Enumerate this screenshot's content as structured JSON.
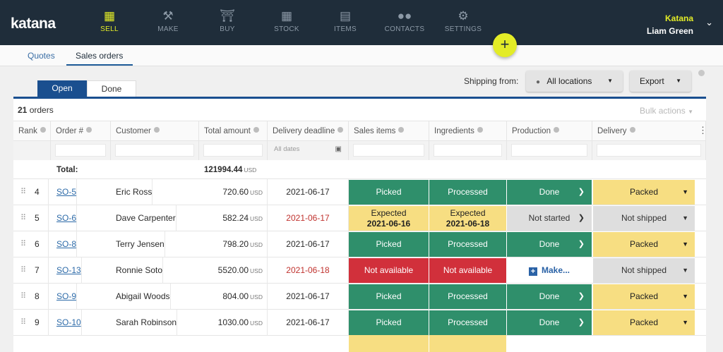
{
  "brand": {
    "logo": "katana",
    "accent": "#e3ec27",
    "nav_bg": "#1f2d3a"
  },
  "nav": [
    {
      "label": "SELL",
      "icon": "storefront-icon",
      "glyph": "▦",
      "active": true
    },
    {
      "label": "MAKE",
      "icon": "hammer-wrench-icon",
      "glyph": "⚒"
    },
    {
      "label": "BUY",
      "icon": "basket-icon",
      "glyph": "⛉"
    },
    {
      "label": "STOCK",
      "icon": "boxes-icon",
      "glyph": "▦"
    },
    {
      "label": "ITEMS",
      "icon": "tag-icon",
      "glyph": "▤"
    },
    {
      "label": "CONTACTS",
      "icon": "people-icon",
      "glyph": "👥"
    },
    {
      "label": "SETTINGS",
      "icon": "gear-icon",
      "glyph": "⚙"
    }
  ],
  "user": {
    "app": "Katana",
    "name": "Liam Green"
  },
  "subtabs": [
    "Quotes",
    "Sales orders"
  ],
  "status_tabs": [
    "Open",
    "Done"
  ],
  "shipping": {
    "label": "Shipping from:",
    "location": "All locations",
    "export": "Export"
  },
  "summary": {
    "count": "21",
    "count_suffix": " orders",
    "bulk_actions": "Bulk actions"
  },
  "columns": [
    "Rank",
    "Order #",
    "Customer",
    "Total amount",
    "Delivery deadline",
    "Sales items",
    "Ingredients",
    "Production",
    "Delivery"
  ],
  "filters": {
    "date_placeholder": "All dates"
  },
  "totals": {
    "label": "Total:",
    "amount": "121994.44",
    "unit": "USD"
  },
  "rows": [
    {
      "rank": "4",
      "order": "SO-5",
      "customer": "Eric Ross",
      "amount": "720.60",
      "unit": "USD",
      "deadline": "2021-06-17",
      "late": false,
      "sales": "Picked",
      "ingredients": "Processed",
      "production": "Done",
      "delivery": "Packed"
    },
    {
      "rank": "5",
      "order": "SO-6",
      "customer": "Dave Carpenter",
      "amount": "582.24",
      "unit": "USD",
      "deadline": "2021-06-17",
      "late": true,
      "sales": "Expected",
      "sales_date": "2021-06-16",
      "ingredients": "Expected",
      "ingredients_date": "2021-06-18",
      "production": "Not started",
      "delivery": "Not shipped"
    },
    {
      "rank": "6",
      "order": "SO-8",
      "customer": "Terry Jensen",
      "amount": "798.20",
      "unit": "USD",
      "deadline": "2021-06-17",
      "late": false,
      "sales": "Picked",
      "ingredients": "Processed",
      "production": "Done",
      "delivery": "Packed"
    },
    {
      "rank": "7",
      "order": "SO-13",
      "customer": "Ronnie Soto",
      "amount": "5520.00",
      "unit": "USD",
      "deadline": "2021-06-18",
      "late": true,
      "sales": "Not available",
      "ingredients": "Not available",
      "production": "Make...",
      "delivery": "Not shipped"
    },
    {
      "rank": "8",
      "order": "SO-9",
      "customer": "Abigail Woods",
      "amount": "804.00",
      "unit": "USD",
      "deadline": "2021-06-17",
      "late": false,
      "sales": "Picked",
      "ingredients": "Processed",
      "production": "Done",
      "delivery": "Packed"
    },
    {
      "rank": "9",
      "order": "SO-10",
      "customer": "Sarah Robinson",
      "amount": "1030.00",
      "unit": "USD",
      "deadline": "2021-06-17",
      "late": false,
      "sales": "Picked",
      "ingredients": "Processed",
      "production": "Done",
      "delivery": "Packed"
    }
  ],
  "status_colors": {
    "green": "#2f8f6b",
    "red": "#d1303b",
    "yellow": "#f7de82",
    "gray": "#dedede"
  }
}
